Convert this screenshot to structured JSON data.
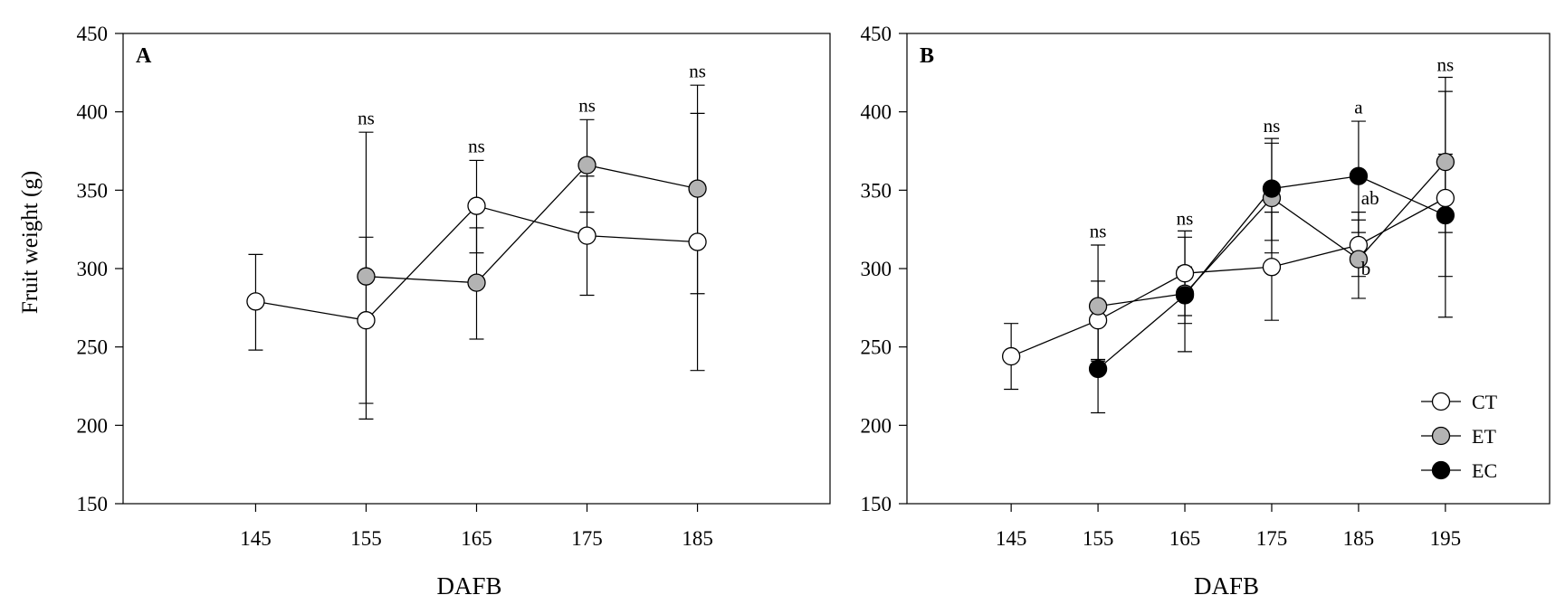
{
  "figure": {
    "ylabel": "Fruit weight (g)"
  },
  "chart_data": [
    {
      "panel_label": "A",
      "type": "line",
      "xlabel": "DAFB",
      "ylabel": "Fruit weight (g)",
      "xlim": [
        133,
        197
      ],
      "ylim": [
        150,
        450
      ],
      "xticks": [
        145,
        155,
        165,
        175,
        185
      ],
      "yticks": [
        150,
        200,
        250,
        300,
        350,
        400,
        450
      ],
      "grid": false,
      "series": [
        {
          "name": "CT",
          "marker_fill": "#ffffff",
          "x": [
            145,
            155,
            165,
            175,
            185
          ],
          "y": [
            279,
            267,
            340,
            321,
            317
          ],
          "err_low": [
            248,
            214,
            310,
            283,
            284
          ],
          "err_high": [
            309,
            320,
            369,
            359,
            399
          ]
        },
        {
          "name": "ET",
          "marker_fill": "#b3b3b3",
          "x": [
            155,
            165,
            175,
            185
          ],
          "y": [
            295,
            291,
            366,
            351
          ],
          "err_low": [
            204,
            255,
            336,
            235
          ],
          "err_high": [
            387,
            326,
            395,
            417
          ]
        }
      ],
      "annotations": [
        {
          "x": 155,
          "y": 392,
          "text": "ns"
        },
        {
          "x": 165,
          "y": 374,
          "text": "ns"
        },
        {
          "x": 175,
          "y": 400,
          "text": "ns"
        },
        {
          "x": 185,
          "y": 422,
          "text": "ns"
        }
      ]
    },
    {
      "panel_label": "B",
      "type": "line",
      "xlabel": "DAFB",
      "ylabel": "",
      "xlim": [
        133,
        207
      ],
      "ylim": [
        150,
        450
      ],
      "xticks": [
        145,
        155,
        165,
        175,
        185,
        195
      ],
      "yticks": [
        150,
        200,
        250,
        300,
        350,
        400,
        450
      ],
      "grid": false,
      "legend_position": "bottom-right",
      "series": [
        {
          "name": "CT",
          "marker_fill": "#ffffff",
          "x": [
            145,
            155,
            165,
            175,
            185,
            195
          ],
          "y": [
            244,
            267,
            297,
            301,
            315,
            345
          ],
          "err_low": [
            223,
            242,
            270,
            267,
            295,
            269
          ],
          "err_high": [
            265,
            292,
            324,
            336,
            336,
            413
          ]
        },
        {
          "name": "ET",
          "marker_fill": "#b3b3b3",
          "x": [
            155,
            165,
            175,
            185,
            195
          ],
          "y": [
            276,
            284,
            345,
            306,
            368
          ],
          "err_low": [
            241,
            247,
            310,
            281,
            323
          ],
          "err_high": [
            315,
            320,
            380,
            331,
            422
          ]
        },
        {
          "name": "EC",
          "marker_fill": "#000000",
          "x": [
            155,
            165,
            175,
            185,
            195
          ],
          "y": [
            236,
            283,
            351,
            359,
            334
          ],
          "err_low": [
            208,
            265,
            318,
            323,
            295
          ],
          "err_high": [
            264,
            301,
            383,
            394,
            373
          ]
        }
      ],
      "annotations": [
        {
          "x": 155,
          "y": 320,
          "text": "ns"
        },
        {
          "x": 165,
          "y": 328,
          "text": "ns"
        },
        {
          "x": 175,
          "y": 387,
          "text": "ns"
        },
        {
          "x": 185,
          "y": 399,
          "text": "a"
        },
        {
          "x": 185.3,
          "y": 341,
          "text": "ab"
        },
        {
          "x": 185.3,
          "y": 296,
          "text": "b"
        },
        {
          "x": 195,
          "y": 426,
          "text": "ns"
        }
      ]
    }
  ]
}
